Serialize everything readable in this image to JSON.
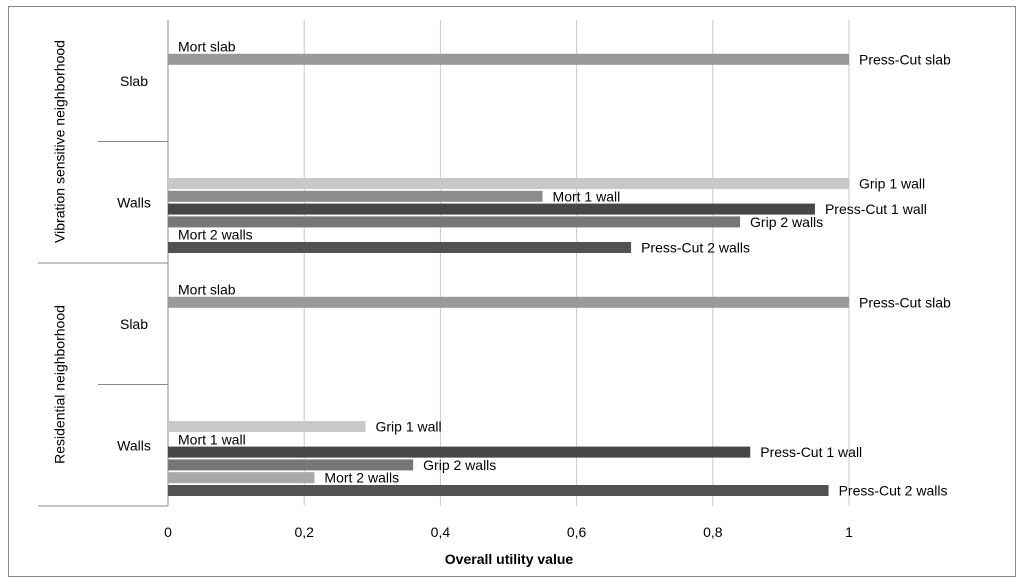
{
  "chart_data": {
    "type": "bar",
    "orientation": "horizontal",
    "xlabel": "Overall utility value",
    "xlim": [
      0,
      1
    ],
    "x_ticks": [
      "0",
      "0,2",
      "0,4",
      "0,6",
      "0,8",
      "1"
    ],
    "grid": true,
    "groups": [
      {
        "name": "Vibration sensitive neighborhood",
        "subgroups": [
          {
            "name": "Slab",
            "bars": [
              {
                "label": "Mort slab",
                "value": 0,
                "color": "#d0d0d0"
              },
              {
                "label": "Press-Cut slab",
                "value": 1.0,
                "color": "#999999"
              }
            ]
          },
          {
            "name": "Walls",
            "bars": [
              {
                "label": "Grip 1 wall",
                "value": 1.0,
                "color": "#c8c8c8"
              },
              {
                "label": "Mort 1 wall",
                "value": 0.55,
                "color": "#8c8c8c"
              },
              {
                "label": "Press-Cut 1 wall",
                "value": 0.95,
                "color": "#474747"
              },
              {
                "label": "Grip 2 walls",
                "value": 0.84,
                "color": "#777777"
              },
              {
                "label": "Mort 2 walls",
                "value": 0,
                "color": "#d0d0d0"
              },
              {
                "label": "Press-Cut 2 walls",
                "value": 0.68,
                "color": "#525252"
              }
            ]
          }
        ]
      },
      {
        "name": "Residential neighborhood",
        "subgroups": [
          {
            "name": "Slab",
            "bars": [
              {
                "label": "Mort slab",
                "value": 0,
                "color": "#d0d0d0"
              },
              {
                "label": "Press-Cut slab",
                "value": 1.0,
                "color": "#999999"
              }
            ]
          },
          {
            "name": "Walls",
            "bars": [
              {
                "label": "Grip 1 wall",
                "value": 0.29,
                "color": "#c8c8c8"
              },
              {
                "label": "Mort 1 wall",
                "value": 0,
                "color": "#d0d0d0"
              },
              {
                "label": "Press-Cut 1 wall",
                "value": 0.855,
                "color": "#474747"
              },
              {
                "label": "Grip 2 walls",
                "value": 0.36,
                "color": "#777777"
              },
              {
                "label": "Mort 2 walls",
                "value": 0.215,
                "color": "#a8a8a8"
              },
              {
                "label": "Press-Cut 2 walls",
                "value": 0.97,
                "color": "#525252"
              }
            ]
          }
        ]
      }
    ]
  }
}
